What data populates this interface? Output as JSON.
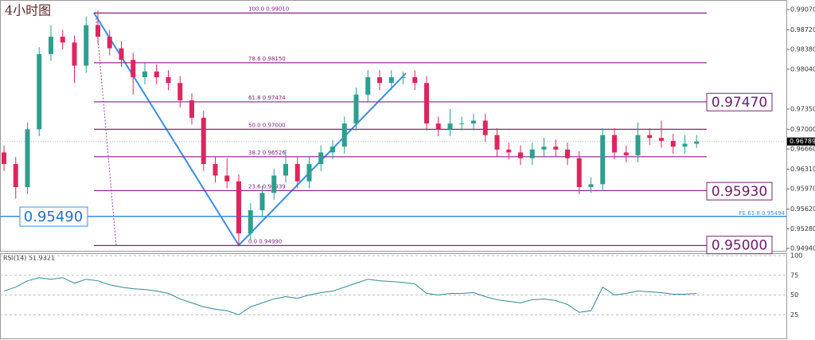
{
  "chart_data": {
    "type": "candlestick",
    "title": "4小时图",
    "up_color": "#2e9e8f",
    "down_color": "#e0245e",
    "open": [
      0.966,
      0.964,
      0.96,
      0.97,
      0.983,
      0.986,
      0.985,
      0.981,
      0.988,
      0.986,
      0.984,
      0.982,
      0.979,
      0.98,
      0.979,
      0.978,
      0.975,
      0.972,
      0.964,
      0.962,
      0.961,
      0.952,
      0.956,
      0.959,
      0.962,
      0.964,
      0.961,
      0.964,
      0.966,
      0.967,
      0.971,
      0.976,
      0.979,
      0.978,
      0.979,
      0.979,
      0.978,
      0.971,
      0.97,
      0.971,
      0.971,
      0.9715,
      0.969,
      0.9665,
      0.966,
      0.965,
      0.9665,
      0.967,
      0.9665,
      0.965,
      0.96,
      0.9605,
      0.969,
      0.966,
      0.9655,
      0.969,
      0.9685,
      0.968,
      0.967,
      0.9675
    ],
    "high": [
      0.9672,
      0.9652,
      0.9712,
      0.9842,
      0.988,
      0.9872,
      0.9862,
      0.9895,
      0.9905,
      0.9872,
      0.9852,
      0.9832,
      0.9815,
      0.9812,
      0.9802,
      0.9792,
      0.9762,
      0.9732,
      0.9652,
      0.965,
      0.9622,
      0.9572,
      0.9602,
      0.9632,
      0.9665,
      0.9652,
      0.9652,
      0.9672,
      0.9682,
      0.9722,
      0.9772,
      0.9802,
      0.9802,
      0.9802,
      0.98,
      0.9802,
      0.9792,
      0.9722,
      0.9735,
      0.9722,
      0.9727,
      0.9727,
      0.9702,
      0.9677,
      0.9672,
      0.9677,
      0.9685,
      0.9682,
      0.9677,
      0.9662,
      0.9617,
      0.9702,
      0.9702,
      0.9672,
      0.9712,
      0.9702,
      0.9715,
      0.9692,
      0.969,
      0.969
    ],
    "low": [
      0.9628,
      0.958,
      0.9588,
      0.9688,
      0.9818,
      0.9838,
      0.978,
      0.9798,
      0.9848,
      0.9828,
      0.9808,
      0.976,
      0.9778,
      0.9778,
      0.9768,
      0.9738,
      0.9708,
      0.9628,
      0.9608,
      0.9598,
      0.9499,
      0.9508,
      0.9548,
      0.9578,
      0.9608,
      0.9598,
      0.9598,
      0.9628,
      0.9648,
      0.9658,
      0.9698,
      0.9748,
      0.9768,
      0.9768,
      0.9778,
      0.9768,
      0.9698,
      0.9688,
      0.9688,
      0.9698,
      0.9698,
      0.9678,
      0.9653,
      0.9648,
      0.9638,
      0.9638,
      0.9653,
      0.9653,
      0.9638,
      0.9588,
      0.959,
      0.9593,
      0.9648,
      0.9643,
      0.9643,
      0.9673,
      0.9668,
      0.9658,
      0.9658,
      0.9668
    ],
    "close": [
      0.964,
      0.96,
      0.97,
      0.983,
      0.986,
      0.985,
      0.981,
      0.988,
      0.986,
      0.984,
      0.982,
      0.979,
      0.98,
      0.979,
      0.978,
      0.975,
      0.972,
      0.964,
      0.962,
      0.961,
      0.952,
      0.956,
      0.959,
      0.962,
      0.964,
      0.961,
      0.964,
      0.966,
      0.967,
      0.971,
      0.976,
      0.979,
      0.978,
      0.979,
      0.979,
      0.978,
      0.971,
      0.97,
      0.971,
      0.971,
      0.9715,
      0.969,
      0.9665,
      0.966,
      0.965,
      0.9665,
      0.967,
      0.9665,
      0.965,
      0.96,
      0.9605,
      0.969,
      0.966,
      0.9655,
      0.969,
      0.9685,
      0.968,
      0.967,
      0.9675,
      0.9679
    ],
    "ylim": [
      0.94899,
      0.99235
    ],
    "yticks": [
      {
        "value": 0.9907,
        "label": "0.99070"
      },
      {
        "value": 0.9872,
        "label": "0.98720"
      },
      {
        "value": 0.9838,
        "label": "0.98380"
      },
      {
        "value": 0.9804,
        "label": "0.98040"
      },
      {
        "value": 0.9735,
        "label": "0.97350"
      },
      {
        "value": 0.97,
        "label": "0.97000"
      },
      {
        "value": 0.9666,
        "label": "0.96660"
      },
      {
        "value": 0.9631,
        "label": "0.96310"
      },
      {
        "value": 0.9597,
        "label": "0.95970"
      },
      {
        "value": 0.9562,
        "label": "0.95620"
      },
      {
        "value": 0.9528,
        "label": "0.95280"
      },
      {
        "value": 0.9494,
        "label": "0.94940"
      }
    ],
    "fib_levels": [
      {
        "label": "100.0  0.99010",
        "value": 0.9901
      },
      {
        "label": "78.6  0.98150",
        "value": 0.9815
      },
      {
        "label": "61.8  0.97474",
        "value": 0.97474
      },
      {
        "label": "50.0  0.97000",
        "value": 0.97
      },
      {
        "label": "38.2  0.96526",
        "value": 0.96526
      },
      {
        "label": "23.6  0.95939",
        "value": 0.95939
      },
      {
        "label": "0.0  0.94990",
        "value": 0.9499
      }
    ],
    "fe_level": {
      "label": "FE 61.8  0.95494",
      "value": 0.95494
    },
    "price_boxes": [
      {
        "label": "0.97470",
        "value": 0.9747
      },
      {
        "label": "0.95930",
        "value": 0.9593
      },
      {
        "label": "0.95000",
        "value": 0.95
      }
    ],
    "left_box": {
      "label": "0.95490",
      "value": 0.9549
    },
    "current_price": {
      "label": "0.96789",
      "value": 0.96789
    },
    "rsi": {
      "title": "RSI(14) 51.9321",
      "color": "#2a8a9a",
      "values": [
        55,
        60,
        68,
        72,
        70,
        72,
        65,
        70,
        68,
        63,
        60,
        58,
        57,
        55,
        52,
        45,
        40,
        35,
        32,
        30,
        25,
        35,
        40,
        45,
        48,
        46,
        50,
        53,
        55,
        60,
        65,
        70,
        68,
        67,
        66,
        64,
        52,
        50,
        52,
        52,
        53,
        48,
        44,
        42,
        40,
        44,
        45,
        43,
        38,
        28,
        30,
        60,
        50,
        52,
        55,
        54,
        53,
        51,
        51,
        52
      ],
      "ylim": [
        0,
        100
      ],
      "yticks": [
        100,
        75,
        50,
        25
      ]
    }
  }
}
